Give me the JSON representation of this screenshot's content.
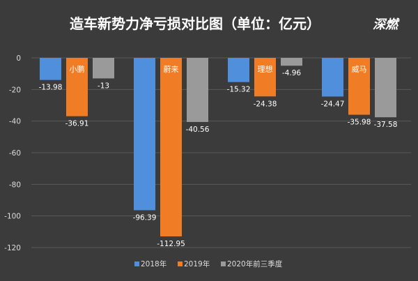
{
  "watermark": "深燃",
  "chart_data": {
    "type": "bar",
    "title": "造车新势力净亏损对比图（单位：亿元）",
    "xlabel": "",
    "ylabel": "",
    "ylim": [
      -120,
      0
    ],
    "yticks": [
      0,
      -20,
      -40,
      -60,
      -80,
      -100,
      -120
    ],
    "grid": true,
    "legend_position": "bottom",
    "categories": [
      "小鹏",
      "蔚来",
      "理想",
      "威马"
    ],
    "series": [
      {
        "name": "2018年",
        "color": "#4f8fdc",
        "values": [
          -13.98,
          -96.39,
          -15.32,
          -24.47
        ]
      },
      {
        "name": "2019年",
        "color": "#f07d26",
        "values": [
          -36.91,
          -112.95,
          -24.38,
          -35.98
        ]
      },
      {
        "name": "2020年前三季度",
        "color": "#9a9a9a",
        "values": [
          -13,
          -40.56,
          -4.96,
          -37.58
        ]
      }
    ]
  }
}
